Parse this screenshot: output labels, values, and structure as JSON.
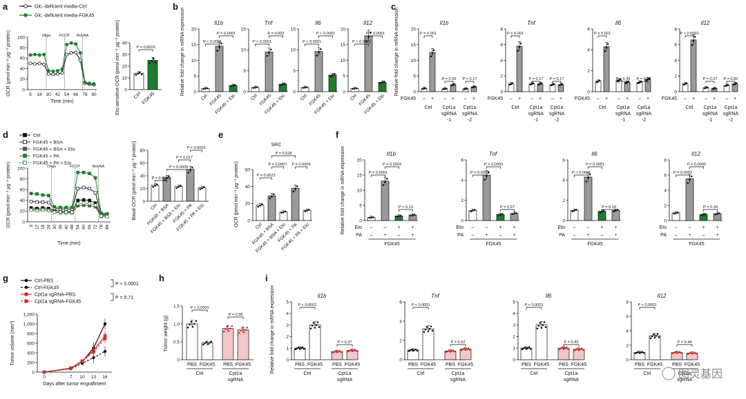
{
  "panel_letters": [
    "a",
    "b",
    "c",
    "d",
    "e",
    "f",
    "g",
    "h",
    "i"
  ],
  "chart_data": [
    {
      "id": "a1",
      "type": "line",
      "xlabel": "Time (min)",
      "ylabel": "OCR (pmol min⁻¹ μg⁻¹ protein)",
      "x": [
        6,
        12,
        18,
        24,
        30,
        36,
        42,
        48,
        54,
        60,
        66,
        72,
        78,
        84,
        90
      ],
      "xticks": [
        "6",
        "18",
        "30",
        "42",
        "54",
        "66",
        "78",
        "90"
      ],
      "ylim": [
        0,
        100
      ],
      "yticks": [
        "0",
        "20",
        "40",
        "60",
        "80",
        "100"
      ],
      "events": [
        "Oligo",
        "FCCP",
        "Rot/AA"
      ],
      "legend": [
        "Glc.-deficient media-Ctrl",
        "Glc.-deficient media-FGK45"
      ],
      "series": [
        {
          "name": "Glc.-deficient media-Ctrl",
          "values": [
            50,
            49,
            50,
            48,
            30,
            29,
            30,
            32,
            67,
            70,
            71,
            56,
            12,
            10,
            9
          ]
        },
        {
          "name": "Glc.-deficient media-FGK45",
          "values": [
            66,
            67,
            66,
            67,
            36,
            35,
            36,
            39,
            86,
            89,
            87,
            70,
            14,
            12,
            11
          ]
        }
      ]
    },
    {
      "id": "a2",
      "type": "bar",
      "ylabel": "Eto-sensitive OCR (pmol min⁻¹ μg⁻¹ protein)",
      "categories": [
        "Ctrl",
        "FGK45"
      ],
      "values": [
        14,
        25
      ],
      "ylim": [
        0,
        40
      ],
      "yticks": [
        "0",
        "10",
        "20",
        "30",
        "40"
      ],
      "annotations": [
        "P = 0.0019"
      ]
    },
    {
      "id": "b",
      "type": "bar",
      "ylabel": "Relative fold change in mRNA expression",
      "categories": [
        "Ctrl",
        "FGK45",
        "FGK45 + Eto"
      ],
      "subplots": [
        {
          "gene": "Il1b",
          "yticks": [
            "0",
            "5",
            "10",
            "15",
            "20"
          ],
          "ylim": [
            0,
            20
          ],
          "values": [
            1,
            14.5,
            2
          ],
          "annotations": [
            "P < 0.0001",
            "P = 0.0001"
          ]
        },
        {
          "gene": "Tnf",
          "yticks": [
            "0",
            "5",
            "10",
            "15"
          ],
          "ylim": [
            0,
            15
          ],
          "values": [
            1,
            9.5,
            1.8
          ],
          "annotations": [
            "P < 0.0001",
            "P = 0.002"
          ]
        },
        {
          "gene": "Il6",
          "yticks": [
            "0",
            "5",
            "10",
            "15"
          ],
          "ylim": [
            0,
            15
          ],
          "values": [
            1,
            9.6,
            4
          ],
          "annotations": [
            "P < 0.0001",
            "P < 0.0001"
          ]
        },
        {
          "gene": "Il12",
          "yticks": [
            "0",
            "5",
            "10",
            "15",
            "20"
          ],
          "ylim": [
            0,
            20
          ],
          "values": [
            1,
            17.8,
            3
          ],
          "annotations": [
            "P < 0.0001",
            "P < 0.0001"
          ]
        }
      ]
    },
    {
      "id": "c",
      "type": "bar",
      "ylabel": "Relative fold change in mRNA expression",
      "row_label": "FGK45",
      "signs": [
        "–",
        "+",
        "–",
        "+",
        "–",
        "+"
      ],
      "groups": [
        "Ctrl",
        "Cpt1a sgRNA -1",
        "Cpt1a sgRNA -2"
      ],
      "subplots": [
        {
          "gene": "Il1b",
          "yticks": [
            "0",
            "5",
            "10",
            "15",
            "20"
          ],
          "ylim": [
            0,
            20
          ],
          "values": [
            1,
            12.5,
            0.9,
            2.2,
            0.9,
            1.5
          ],
          "annotations": [
            "P = 0.001",
            "P = 0.05",
            "P = 0.17"
          ]
        },
        {
          "gene": "Tnf",
          "yticks": [
            "0",
            "2",
            "4",
            "6",
            "8"
          ],
          "ylim": [
            0,
            8
          ],
          "values": [
            1,
            5.8,
            1,
            1,
            0.9,
            0.9
          ],
          "annotations": [
            "P = 0.001",
            "P = 0.17",
            "P = 0.17"
          ]
        },
        {
          "gene": "Il6",
          "yticks": [
            "0",
            "2",
            "4",
            "6"
          ],
          "ylim": [
            0,
            6
          ],
          "values": [
            1,
            4.3,
            1.1,
            0.9,
            0.9,
            1.2
          ],
          "annotations": [
            "P = 0.001",
            "P = 0.36",
            "P = 0.62"
          ]
        },
        {
          "gene": "Il12",
          "yticks": [
            "0",
            "2",
            "4",
            "6",
            "8"
          ],
          "ylim": [
            0,
            8
          ],
          "values": [
            1,
            6.6,
            0.5,
            0.4,
            0.8,
            1
          ],
          "annotations": [
            "P < 0.0001",
            "P = 0.07",
            "P = 0.82"
          ]
        }
      ]
    },
    {
      "id": "d1",
      "type": "line",
      "xlabel": "Time (min)",
      "ylabel": "OCR (pmol min⁻¹ μg⁻¹ protein)",
      "xticks": [
        "6",
        "12",
        "18",
        "24",
        "30",
        "36",
        "42",
        "48",
        "54",
        "60",
        "66",
        "72",
        "78",
        "84"
      ],
      "ylim": [
        0,
        100
      ],
      "yticks": [
        "0",
        "20",
        "40",
        "60",
        "80",
        "100"
      ],
      "events": [
        "Oligo",
        "FCCP",
        "Rot/AA"
      ],
      "legend": [
        "Ctrl",
        "FGK45 + BSA",
        "FGK45 + BSA + Eto",
        "FGK45 + PA",
        "FGK45 + PA + Eto"
      ],
      "series": [
        {
          "name": "Ctrl",
          "values": [
            26,
            25,
            26,
            25,
            21,
            20,
            19,
            19,
            40,
            41,
            40,
            35,
            13,
            12
          ]
        },
        {
          "name": "FGK45 + BSA",
          "values": [
            38,
            37,
            37,
            36,
            25,
            24,
            24,
            24,
            62,
            64,
            62,
            54,
            15,
            14
          ]
        },
        {
          "name": "FGK45 + BSA + Eto",
          "values": [
            23,
            22,
            23,
            22,
            18,
            17,
            17,
            17,
            30,
            31,
            30,
            28,
            10,
            10
          ]
        },
        {
          "name": "FGK45 + PA",
          "values": [
            53,
            52,
            50,
            49,
            28,
            27,
            27,
            27,
            92,
            92,
            90,
            82,
            16,
            15
          ]
        },
        {
          "name": "FGK45 + PA + Eto",
          "values": [
            22,
            21,
            22,
            21,
            18,
            18,
            18,
            18,
            34,
            35,
            34,
            31,
            11,
            10
          ]
        }
      ]
    },
    {
      "id": "d2",
      "type": "bar",
      "ylabel": "Basal OCR (pmol min⁻¹ μg⁻¹ protein)",
      "categories": [
        "Ctrl",
        "FGK45 + BSA",
        "FGK45 + BSA + Eto",
        "FGK45 + PA",
        "FGK45 + PA + Eto"
      ],
      "values": [
        25,
        37,
        23,
        50,
        21
      ],
      "ylim": [
        0,
        80
      ],
      "yticks": [
        "0",
        "20",
        "40",
        "60",
        "80"
      ],
      "annotations": [
        "P = 0.0015",
        "P = 0.0009",
        "P = 0.017",
        "P = 0.0003"
      ]
    },
    {
      "id": "e",
      "type": "bar",
      "title": "SRC",
      "ylabel": "OCR (pmol min⁻¹ μg⁻¹ protein)",
      "categories": [
        "Ctrl",
        "FGK45 + BSA",
        "FGK45 + BSA + Eto",
        "FGK45 + PA",
        "FGK45 + PA + Eto"
      ],
      "values": [
        18,
        29,
        10,
        38,
        12
      ],
      "ylim": [
        0,
        60
      ],
      "yticks": [
        "0",
        "20",
        "40",
        "60"
      ],
      "annotations": [
        "P = 0.0023",
        "P = 0.0007",
        "P = 0.028",
        "P = 0.0005"
      ]
    },
    {
      "id": "f",
      "type": "bar",
      "ylabel": "Relative fold change in mRNA expression",
      "rows": [
        "Eto",
        "PA"
      ],
      "signs_eto": [
        "–",
        "–",
        "+",
        "+"
      ],
      "signs_pa": [
        "–",
        "+",
        "–",
        "+"
      ],
      "group": "FGK45",
      "subplots": [
        {
          "gene": "Il1b",
          "yticks": [
            "0",
            "5",
            "10",
            "15",
            "20"
          ],
          "ylim": [
            0,
            20
          ],
          "values": [
            1,
            13,
            1.5,
            1.8
          ],
          "annotations": [
            "P = 0.0001",
            "P = 0.0003",
            "P = 0.13"
          ]
        },
        {
          "gene": "Tnf",
          "yticks": [
            "0",
            "2",
            "4",
            "6"
          ],
          "ylim": [
            0,
            6
          ],
          "values": [
            1,
            4.5,
            0.6,
            0.7
          ],
          "annotations": [
            "P = 0.0003",
            "P = 0.0003",
            "P = 0.67"
          ]
        },
        {
          "gene": "Il6",
          "yticks": [
            "0",
            "2",
            "4",
            "6"
          ],
          "ylim": [
            0,
            6
          ],
          "values": [
            1,
            4.3,
            0.9,
            1
          ],
          "annotations": [
            "P < 0.0001",
            "P = 0.0001",
            "P = 0.18"
          ]
        },
        {
          "gene": "Il12",
          "yticks": [
            "0",
            "2",
            "4",
            "6",
            "8"
          ],
          "ylim": [
            0,
            8
          ],
          "values": [
            1,
            5.5,
            0.8,
            0.9
          ],
          "annotations": [
            "P = 0.0002",
            "P = 0.0002",
            "P = 0.34"
          ]
        }
      ]
    },
    {
      "id": "g",
      "type": "line",
      "xlabel": "Days after tumor engraftment",
      "ylabel": "Tumor volume (mm³)",
      "x": [
        0,
        7,
        10,
        13,
        16
      ],
      "xticks": [
        "0",
        "7",
        "10",
        "13",
        "16"
      ],
      "ylim": [
        0,
        1200
      ],
      "yticks": [
        "0",
        "200",
        "400",
        "600",
        "800",
        "1,000",
        "1,200"
      ],
      "annotations": [
        "P < 0.0001",
        "P = 0.71"
      ],
      "series": [
        {
          "name": "Ctrl-PBS",
          "values": [
            0,
            80,
            220,
            500,
            1000
          ]
        },
        {
          "name": "Ctrl-FGK45",
          "values": [
            0,
            70,
            180,
            300,
            430
          ]
        },
        {
          "name": "Cpt1a sgRNA-PBS",
          "values": [
            0,
            85,
            230,
            450,
            750
          ]
        },
        {
          "name": "Cpt1a sgRNA-FGK45",
          "values": [
            0,
            80,
            220,
            420,
            700
          ]
        }
      ]
    },
    {
      "id": "h",
      "type": "bar",
      "ylabel": "Tumor weight (g)",
      "categories": [
        "PBS",
        "FGK45",
        "PBS",
        "FGK45"
      ],
      "groups": [
        "Ctrl",
        "Cpt1a sgRNA"
      ],
      "values": [
        1.0,
        0.47,
        0.87,
        0.83
      ],
      "ylim": [
        0,
        1.5
      ],
      "yticks": [
        "0",
        "0.5",
        "1.0",
        "1.5"
      ],
      "annotations": [
        "P < 0.0001",
        "P = 0.96"
      ]
    },
    {
      "id": "i",
      "type": "bar",
      "ylabel": "Relative fold change in mRNA expression",
      "categories": [
        "PBS",
        "FGK45",
        "PBS",
        "FGK45"
      ],
      "groups": [
        "Ctrl",
        "Cpt1a sgRNA"
      ],
      "subplots": [
        {
          "gene": "Il1b",
          "yticks": [
            "0",
            "1",
            "2",
            "3",
            "4",
            "5"
          ],
          "ylim": [
            0,
            5
          ],
          "values": [
            1,
            3,
            0.7,
            0.8
          ],
          "annotations": [
            "P < 0.0001",
            "P = 0.37"
          ]
        },
        {
          "gene": "Tnf",
          "yticks": [
            "0",
            "2",
            "4",
            "6"
          ],
          "ylim": [
            0,
            6
          ],
          "values": [
            1,
            3.2,
            0.9,
            1.1
          ],
          "annotations": [
            "P < 0.0001",
            "P = 0.52"
          ]
        },
        {
          "gene": "Il6",
          "yticks": [
            "0",
            "1",
            "2",
            "3",
            "4",
            "5"
          ],
          "ylim": [
            0,
            5
          ],
          "values": [
            1,
            3,
            1,
            0.9
          ],
          "annotations": [
            "P < 0.0001",
            "P = 0.40"
          ]
        },
        {
          "gene": "Il12",
          "yticks": [
            "0",
            "2",
            "4",
            "6",
            "8"
          ],
          "ylim": [
            0,
            8
          ],
          "values": [
            1,
            3.3,
            1,
            0.9
          ],
          "annotations": [
            "P < 0.0001",
            "P = 0.44"
          ]
        }
      ]
    }
  ],
  "watermark": "图灵基因",
  "colors": {
    "green": "#1e7d2b",
    "gray": "#9a9a9a",
    "red": "#d42b2b",
    "dark": "#1a1a1a"
  }
}
